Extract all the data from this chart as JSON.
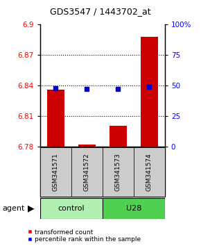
{
  "title": "GDS3547 / 1443702_at",
  "samples": [
    "GSM341571",
    "GSM341572",
    "GSM341573",
    "GSM341574"
  ],
  "red_values": [
    6.836,
    6.782,
    6.8,
    6.888
  ],
  "blue_values": [
    48.0,
    47.0,
    47.0,
    49.0
  ],
  "y_min": 6.78,
  "y_max": 6.9,
  "y_ticks_left": [
    6.78,
    6.81,
    6.84,
    6.87,
    6.9
  ],
  "y_ticks_right": [
    0,
    25,
    50,
    75,
    100
  ],
  "groups": [
    {
      "label": "control",
      "indices": [
        0,
        1
      ],
      "color": "#b2f0b2"
    },
    {
      "label": "U28",
      "indices": [
        2,
        3
      ],
      "color": "#50d050"
    }
  ],
  "agent_label": "agent",
  "bar_color": "#CC0000",
  "dot_color": "#0000CC",
  "bar_width": 0.55,
  "baseline": 6.78,
  "sample_box_color": "#CCCCCC",
  "title_fontsize": 9,
  "tick_fontsize": 7.5,
  "sample_fontsize": 6.5,
  "group_fontsize": 8,
  "legend_fontsize": 6.5,
  "agent_fontsize": 8
}
